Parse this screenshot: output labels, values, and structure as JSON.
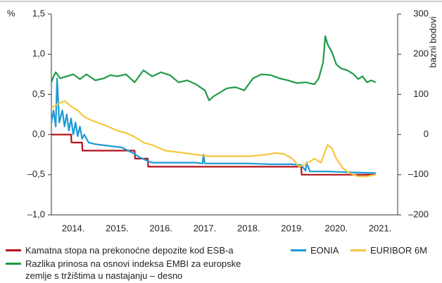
{
  "chart_data": {
    "type": "line",
    "y_unit": "%",
    "y2_label": "bazni bodovi",
    "xlim": [
      2014,
      2021.9
    ],
    "xticks": [
      {
        "value": 2014.5,
        "label": "2014."
      },
      {
        "value": 2015.5,
        "label": "2015."
      },
      {
        "value": 2016.5,
        "label": "2016."
      },
      {
        "value": 2017.5,
        "label": "2017."
      },
      {
        "value": 2018.5,
        "label": "2018."
      },
      {
        "value": 2019.5,
        "label": "2019."
      },
      {
        "value": 2020.5,
        "label": "2020."
      },
      {
        "value": 2021.5,
        "label": "2021."
      }
    ],
    "ylim": [
      -1,
      1.5
    ],
    "yticks": [
      {
        "value": 1.5,
        "label": "1,5"
      },
      {
        "value": 1,
        "label": "1,0"
      },
      {
        "value": 0.5,
        "label": "0,5"
      },
      {
        "value": 0,
        "label": "0,0"
      },
      {
        "value": -0.5,
        "label": "–0,5"
      },
      {
        "value": -1,
        "label": "–1,0"
      }
    ],
    "y2lim": [
      -200,
      300
    ],
    "y2ticks": [
      300,
      200,
      100,
      0,
      {
        "value": -100,
        "label": "–100"
      },
      {
        "value": -200,
        "label": "–200"
      }
    ],
    "grid": false,
    "series": [
      {
        "name": "Kamatna stopa na prekonoćne depozite kod ESB-a",
        "color": "#b5121b",
        "x": [
          2014,
          2014.45,
          2014.46,
          2014.7,
          2014.71,
          2015.9,
          2015.91,
          2016.2,
          2016.21,
          2019.7,
          2019.71,
          2021.4
        ],
        "values": [
          0,
          0,
          -0.1,
          -0.1,
          -0.2,
          -0.2,
          -0.3,
          -0.3,
          -0.4,
          -0.4,
          -0.5,
          -0.5
        ]
      },
      {
        "name": "EONIA",
        "color": "#1c9ad6",
        "x": [
          2014,
          2014.05,
          2014.1,
          2014.13,
          2014.18,
          2014.25,
          2014.3,
          2014.35,
          2014.4,
          2014.45,
          2014.5,
          2014.55,
          2014.6,
          2014.65,
          2014.7,
          2014.75,
          2014.85,
          2015.0,
          2015.3,
          2015.6,
          2015.9,
          2016.0,
          2016.2,
          2016.3,
          2016.8,
          2017.3,
          2017.45,
          2017.47,
          2017.5,
          2018.0,
          2018.5,
          2019.0,
          2019.5,
          2019.7,
          2019.8,
          2019.82,
          2019.9,
          2020.3,
          2020.8,
          2021.4
        ],
        "values": [
          0.15,
          0.3,
          0.1,
          0.7,
          0.15,
          0.3,
          0.1,
          0.25,
          0.05,
          0.2,
          0.0,
          0.15,
          -0.02,
          0.1,
          -0.05,
          0.0,
          -0.1,
          -0.12,
          -0.14,
          -0.16,
          -0.24,
          -0.28,
          -0.33,
          -0.35,
          -0.35,
          -0.35,
          -0.36,
          -0.25,
          -0.36,
          -0.36,
          -0.36,
          -0.37,
          -0.37,
          -0.38,
          -0.45,
          -0.35,
          -0.46,
          -0.46,
          -0.47,
          -0.48
        ]
      },
      {
        "name": "EURIBOR 6M",
        "color": "#f7c53b",
        "x": [
          2014,
          2014.15,
          2014.3,
          2014.45,
          2014.6,
          2014.75,
          2014.9,
          2015.2,
          2015.5,
          2015.7,
          2015.9,
          2016.1,
          2016.3,
          2016.6,
          2016.9,
          2017.3,
          2017.6,
          2018.0,
          2018.5,
          2018.9,
          2019.1,
          2019.3,
          2019.5,
          2019.65,
          2019.8,
          2020.0,
          2020.15,
          2020.3,
          2020.4,
          2020.5,
          2020.65,
          2020.8,
          2021.0,
          2021.2,
          2021.4
        ],
        "values": [
          0.33,
          0.38,
          0.42,
          0.35,
          0.3,
          0.22,
          0.18,
          0.12,
          0.05,
          0.02,
          -0.03,
          -0.1,
          -0.13,
          -0.2,
          -0.22,
          -0.25,
          -0.27,
          -0.27,
          -0.27,
          -0.25,
          -0.23,
          -0.24,
          -0.3,
          -0.4,
          -0.37,
          -0.3,
          -0.35,
          -0.13,
          -0.17,
          -0.3,
          -0.42,
          -0.48,
          -0.52,
          -0.52,
          -0.5
        ]
      },
      {
        "name": "Razlika prinosa na osnovi indeksa EMBI za europske zemlje s tržištima u nastajanju – desno",
        "color": "#1e9a45",
        "axis": "y2",
        "x": [
          2014,
          2014.05,
          2014.1,
          2014.2,
          2014.35,
          2014.5,
          2014.65,
          2014.8,
          2015.0,
          2015.2,
          2015.35,
          2015.5,
          2015.7,
          2015.9,
          2016.1,
          2016.3,
          2016.5,
          2016.7,
          2016.9,
          2017.1,
          2017.3,
          2017.5,
          2017.6,
          2017.7,
          2017.85,
          2018.0,
          2018.2,
          2018.4,
          2018.6,
          2018.8,
          2019.0,
          2019.2,
          2019.4,
          2019.6,
          2019.8,
          2020.0,
          2020.1,
          2020.2,
          2020.25,
          2020.3,
          2020.4,
          2020.5,
          2020.6,
          2020.75,
          2020.9,
          2021.0,
          2021.1,
          2021.2,
          2021.3,
          2021.4
        ],
        "values": [
          130,
          145,
          155,
          140,
          145,
          150,
          138,
          150,
          135,
          140,
          148,
          145,
          150,
          130,
          160,
          145,
          155,
          148,
          130,
          135,
          125,
          110,
          85,
          95,
          105,
          115,
          118,
          110,
          140,
          150,
          148,
          140,
          135,
          128,
          130,
          125,
          140,
          180,
          245,
          225,
          205,
          175,
          165,
          160,
          150,
          138,
          145,
          130,
          135,
          130
        ]
      }
    ]
  }
}
